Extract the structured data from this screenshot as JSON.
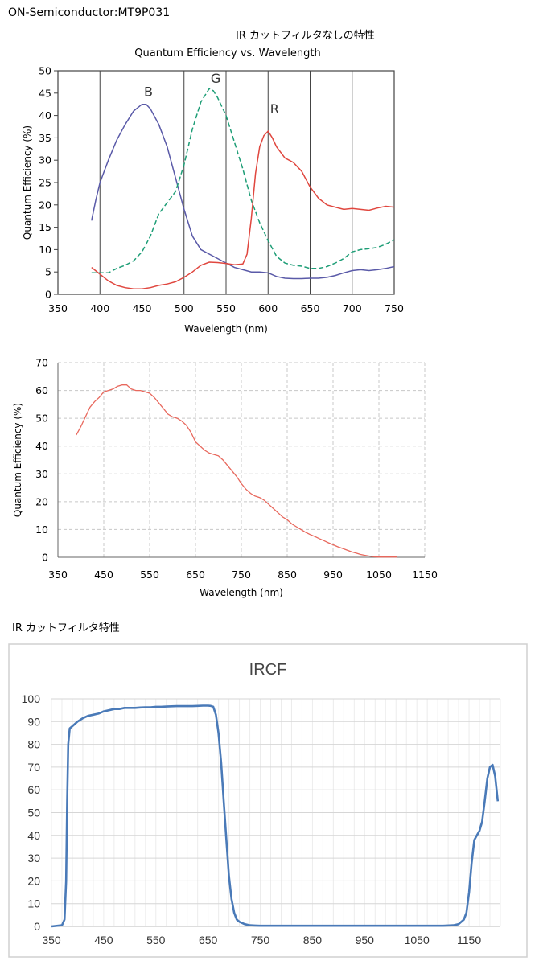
{
  "header": {
    "title": "ON-Semiconductor:MT9P031",
    "subtitle": "IR カットフィルタなしの特性"
  },
  "section_label": "IR カットフィルタ特性",
  "chart_data": [
    {
      "type": "line",
      "title": "Quantum Efficiency vs. Wavelength",
      "xlabel": "Wavelength (nm)",
      "ylabel": "Quantum Efficiency (%)",
      "xlim": [
        350,
        750
      ],
      "ylim": [
        0,
        50
      ],
      "x_ticks": [
        "350",
        "400",
        "450",
        "500",
        "550",
        "600",
        "650",
        "700",
        "750"
      ],
      "y_ticks": [
        "0",
        "5",
        "10",
        "15",
        "20",
        "25",
        "30",
        "35",
        "40",
        "45",
        "50"
      ],
      "grid": "vertical lines at x ticks",
      "series": [
        {
          "name": "B",
          "color": "#5a5aa8",
          "style": "solid",
          "x": [
            390,
            395,
            400,
            410,
            420,
            430,
            440,
            450,
            455,
            460,
            470,
            480,
            490,
            500,
            510,
            520,
            530,
            540,
            550,
            560,
            570,
            580,
            590,
            600,
            610,
            620,
            630,
            640,
            650,
            660,
            670,
            680,
            690,
            700,
            710,
            720,
            730,
            740,
            750
          ],
          "y": [
            16.5,
            21,
            25,
            30,
            34.5,
            38,
            41,
            42.5,
            42.5,
            41.5,
            38,
            33,
            26,
            19,
            13,
            10,
            9,
            8,
            7,
            6,
            5.5,
            5,
            5,
            4.8,
            4,
            3.6,
            3.5,
            3.5,
            3.6,
            3.6,
            3.8,
            4.2,
            4.8,
            5.3,
            5.5,
            5.3,
            5.5,
            5.8,
            6.2
          ]
        },
        {
          "name": "G",
          "color": "#1f9e77",
          "style": "dashed",
          "x": [
            390,
            400,
            410,
            420,
            430,
            440,
            450,
            460,
            470,
            480,
            490,
            500,
            510,
            520,
            530,
            535,
            540,
            550,
            560,
            570,
            580,
            590,
            600,
            610,
            620,
            630,
            640,
            650,
            660,
            670,
            680,
            690,
            700,
            710,
            720,
            730,
            740,
            750
          ],
          "y": [
            4.8,
            4.8,
            4.8,
            5.8,
            6.5,
            7.5,
            9.5,
            13,
            18,
            20.5,
            23,
            29,
            37,
            43,
            46,
            45.5,
            44,
            40,
            34,
            28,
            21,
            16,
            12,
            8.5,
            7,
            6.5,
            6.3,
            5.8,
            5.8,
            6.2,
            7,
            8,
            9.5,
            10,
            10.2,
            10.5,
            11.2,
            12.2
          ]
        },
        {
          "name": "R",
          "color": "#e0473f",
          "style": "solid",
          "x": [
            390,
            400,
            410,
            420,
            430,
            440,
            450,
            460,
            470,
            480,
            490,
            500,
            510,
            520,
            530,
            540,
            550,
            560,
            570,
            575,
            580,
            585,
            590,
            595,
            600,
            605,
            610,
            620,
            630,
            640,
            650,
            660,
            670,
            680,
            690,
            700,
            710,
            720,
            730,
            740,
            750
          ],
          "y": [
            6,
            4.5,
            3,
            2,
            1.5,
            1.2,
            1.2,
            1.5,
            2,
            2.3,
            2.8,
            3.8,
            5,
            6.5,
            7.2,
            7.1,
            6.9,
            6.6,
            6.8,
            9,
            17,
            27,
            33,
            35.5,
            36.5,
            35,
            33,
            30.5,
            29.5,
            27.5,
            24,
            21.5,
            20,
            19.5,
            19,
            19.2,
            19,
            18.8,
            19.3,
            19.7,
            19.5
          ]
        }
      ],
      "annotations": [
        "B",
        "G",
        "R"
      ]
    },
    {
      "type": "line",
      "title": "",
      "xlabel": "Wavelength (nm)",
      "ylabel": "Quantum Efficiency (%)",
      "xlim": [
        350,
        1150
      ],
      "ylim": [
        0,
        70
      ],
      "x_ticks": [
        "350",
        "450",
        "550",
        "650",
        "750",
        "850",
        "950",
        "1050",
        "1150"
      ],
      "y_ticks": [
        "0",
        "10",
        "20",
        "30",
        "40",
        "50",
        "60",
        "70"
      ],
      "grid": "dashed both axes",
      "series": [
        {
          "color": "#e8685d",
          "x": [
            390,
            400,
            410,
            420,
            430,
            440,
            450,
            460,
            470,
            480,
            490,
            500,
            510,
            520,
            530,
            540,
            550,
            560,
            570,
            580,
            590,
            600,
            610,
            620,
            630,
            640,
            650,
            660,
            670,
            680,
            690,
            700,
            710,
            720,
            730,
            740,
            750,
            760,
            770,
            780,
            790,
            800,
            810,
            820,
            830,
            840,
            850,
            860,
            870,
            880,
            890,
            900,
            910,
            920,
            930,
            940,
            950,
            960,
            970,
            980,
            990,
            1000,
            1010,
            1020,
            1030,
            1040,
            1050,
            1060,
            1070,
            1080,
            1090
          ],
          "y": [
            44,
            47,
            50.5,
            54,
            56,
            57.5,
            59.5,
            60,
            60.5,
            61.5,
            62,
            62,
            60.5,
            60,
            60,
            59.5,
            59,
            57.5,
            55.5,
            53.5,
            51.5,
            50.5,
            50,
            49,
            47.5,
            45,
            41.5,
            40,
            38.5,
            37.5,
            37,
            36.5,
            35,
            33,
            31,
            29,
            26.5,
            24.5,
            23,
            22,
            21.5,
            20.5,
            19,
            17.5,
            16,
            14.5,
            13.5,
            12,
            11,
            10,
            9,
            8.2,
            7.5,
            6.7,
            6,
            5.2,
            4.5,
            3.8,
            3.2,
            2.6,
            2,
            1.5,
            1,
            0.7,
            0.4,
            0.2,
            0.1,
            0.1,
            0.1,
            0.1,
            0.1
          ]
        }
      ]
    },
    {
      "type": "line",
      "title": "IRCF",
      "xlabel": "",
      "ylabel": "",
      "xlim": [
        350,
        1210
      ],
      "ylim": [
        0,
        100
      ],
      "x_ticks": [
        "350",
        "450",
        "550",
        "650",
        "750",
        "850",
        "950",
        "1050",
        "1150"
      ],
      "y_ticks": [
        "0",
        "10",
        "20",
        "30",
        "40",
        "50",
        "60",
        "70",
        "80",
        "90",
        "100"
      ],
      "grid": "horizontal and vertical gridlines",
      "series": [
        {
          "color": "#4a7ab8",
          "x": [
            350,
            370,
            375,
            378,
            380,
            382,
            385,
            390,
            400,
            410,
            420,
            430,
            440,
            450,
            460,
            470,
            480,
            490,
            500,
            510,
            520,
            530,
            540,
            550,
            560,
            570,
            580,
            590,
            600,
            610,
            620,
            630,
            640,
            650,
            655,
            660,
            665,
            670,
            675,
            680,
            685,
            690,
            695,
            700,
            705,
            710,
            720,
            730,
            740,
            750,
            800,
            850,
            900,
            950,
            1000,
            1050,
            1100,
            1120,
            1130,
            1140,
            1145,
            1150,
            1155,
            1160,
            1165,
            1170,
            1175,
            1180,
            1185,
            1190,
            1195,
            1200,
            1205
          ],
          "y": [
            0,
            0.5,
            3,
            20,
            55,
            80,
            87,
            88,
            90,
            91.5,
            92.5,
            93,
            93.5,
            94.5,
            95,
            95.5,
            95.5,
            96,
            96,
            96,
            96.2,
            96.3,
            96.3,
            96.5,
            96.5,
            96.6,
            96.7,
            96.8,
            96.8,
            96.8,
            96.8,
            96.9,
            97,
            97,
            96.9,
            96.5,
            93,
            85,
            72,
            55,
            38,
            22,
            12,
            6,
            3,
            2,
            1,
            0.5,
            0.4,
            0.3,
            0.3,
            0.3,
            0.3,
            0.3,
            0.3,
            0.3,
            0.3,
            0.5,
            1,
            3,
            6,
            15,
            28,
            38,
            40,
            42,
            46,
            55,
            65,
            70,
            71,
            66,
            55
          ]
        }
      ]
    }
  ]
}
